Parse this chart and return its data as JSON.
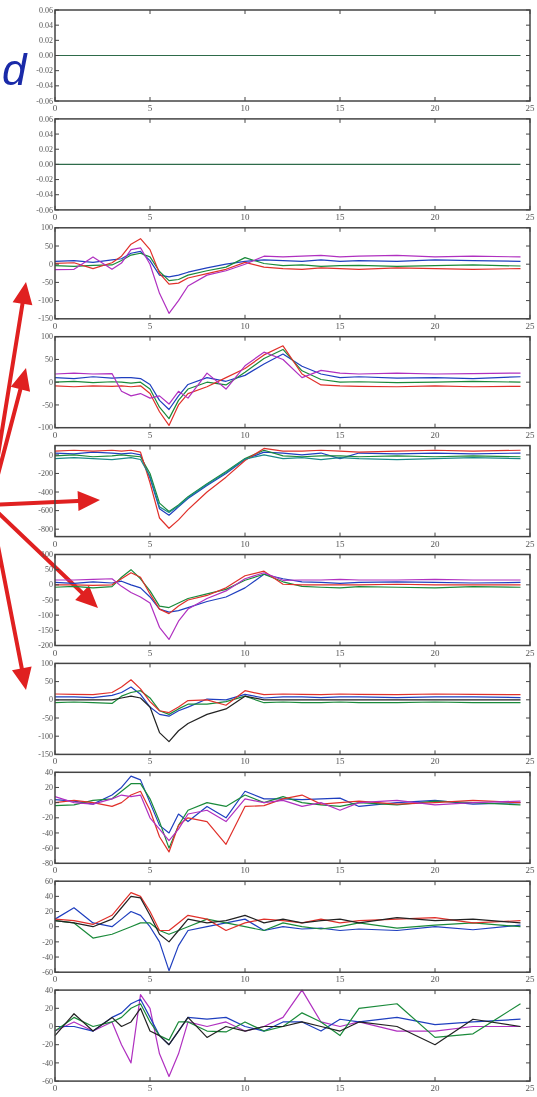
{
  "chart_data": [
    {
      "type": "line",
      "annotations": [
        "d"
      ],
      "xlim": [
        0,
        25
      ],
      "xticks": [
        0,
        5,
        10,
        15,
        20,
        25
      ],
      "ylim": [
        -0.06,
        0.06
      ],
      "yticks": [
        -0.06,
        -0.04,
        -0.02,
        {
          "value": 0,
          "label": "0.00"
        },
        0.02,
        0.04,
        0.06
      ],
      "x": [
        0,
        24.5
      ],
      "series": [
        {
          "color": "#2e6b4a",
          "values": [
            0,
            0
          ]
        }
      ]
    },
    {
      "type": "line",
      "xlim": [
        0,
        25
      ],
      "xticks": [
        0,
        5,
        10,
        15,
        20,
        25
      ],
      "ylim": [
        -0.06,
        0.06
      ],
      "yticks": [
        -0.06,
        -0.04,
        -0.02,
        {
          "value": 0,
          "label": "0.00"
        },
        0.02,
        0.04,
        0.06
      ],
      "x": [
        0,
        24.5
      ],
      "series": [
        {
          "color": "#2e6b4a",
          "values": [
            0,
            0
          ]
        }
      ]
    },
    {
      "type": "line",
      "xlim": [
        0,
        25
      ],
      "xticks": [
        0,
        5,
        10,
        15,
        20,
        25
      ],
      "ylim": [
        -150,
        100
      ],
      "yticks": [
        -150,
        -100,
        -50,
        0,
        50,
        100
      ],
      "x": [
        0,
        1,
        2,
        3,
        3.5,
        4,
        4.5,
        5,
        5.5,
        6,
        6.5,
        7,
        8,
        9,
        10,
        11,
        12,
        13,
        14,
        15,
        16,
        18,
        20,
        22,
        24.5
      ],
      "series": [
        {
          "color": "#1f3fbf",
          "values": [
            8,
            10,
            5,
            12,
            15,
            30,
            35,
            10,
            -30,
            -35,
            -30,
            -22,
            -10,
            0,
            8,
            12,
            10,
            8,
            12,
            8,
            10,
            8,
            12,
            10,
            8
          ]
        },
        {
          "color": "#1a8a3a",
          "values": [
            -4,
            -6,
            -3,
            -2,
            10,
            25,
            30,
            20,
            -20,
            -45,
            -42,
            -30,
            -18,
            -8,
            18,
            2,
            -4,
            -2,
            -6,
            -4,
            -3,
            -6,
            -4,
            -2,
            -5
          ]
        },
        {
          "color": "#e0302a",
          "values": [
            2,
            4,
            -12,
            4,
            22,
            55,
            70,
            40,
            -25,
            -55,
            -52,
            -38,
            -26,
            -14,
            5,
            -8,
            -12,
            -14,
            -10,
            -12,
            -14,
            -10,
            -12,
            -14,
            -12
          ]
        },
        {
          "color": "#b030c0",
          "values": [
            -15,
            -14,
            20,
            -14,
            3,
            40,
            45,
            0,
            -80,
            -135,
            -100,
            -60,
            -30,
            -18,
            0,
            22,
            20,
            22,
            24,
            20,
            22,
            24,
            20,
            22,
            20
          ]
        }
      ]
    },
    {
      "type": "line",
      "xlim": [
        0,
        25
      ],
      "xticks": [
        0,
        5,
        10,
        15,
        20,
        25
      ],
      "ylim": [
        -100,
        100
      ],
      "yticks": [
        -100,
        -50,
        0,
        50,
        100
      ],
      "x": [
        0,
        1,
        2,
        3,
        3.5,
        4,
        4.5,
        5,
        5.5,
        6,
        6.5,
        7,
        8,
        9,
        10,
        11,
        12,
        13,
        14,
        15,
        16,
        18,
        20,
        22,
        24.5
      ],
      "series": [
        {
          "color": "#1f3fbf",
          "values": [
            10,
            8,
            12,
            9,
            10,
            10,
            8,
            -5,
            -40,
            -60,
            -30,
            -5,
            10,
            2,
            15,
            40,
            62,
            35,
            18,
            10,
            12,
            9,
            10,
            8,
            12
          ]
        },
        {
          "color": "#1a8a3a",
          "values": [
            0,
            2,
            -1,
            1,
            0,
            -2,
            0,
            -15,
            -55,
            -80,
            -40,
            -15,
            0,
            -6,
            22,
            52,
            72,
            25,
            6,
            0,
            1,
            -1,
            0,
            2,
            0
          ]
        },
        {
          "color": "#e0302a",
          "values": [
            -8,
            -10,
            -8,
            -9,
            -8,
            -10,
            -8,
            -25,
            -65,
            -95,
            -50,
            -25,
            -10,
            10,
            30,
            60,
            80,
            18,
            -6,
            -8,
            -9,
            -10,
            -8,
            -10,
            -9
          ]
        },
        {
          "color": "#b030c0",
          "values": [
            18,
            20,
            18,
            19,
            -20,
            -30,
            -25,
            -35,
            -30,
            -48,
            -20,
            -35,
            20,
            -15,
            36,
            66,
            50,
            10,
            26,
            20,
            18,
            20,
            18,
            19,
            20
          ]
        }
      ]
    },
    {
      "type": "line",
      "xlim": [
        0,
        25
      ],
      "xticks": [
        0,
        5,
        10,
        15,
        20,
        25
      ],
      "ylim": [
        -880,
        100
      ],
      "yticks": [
        -800,
        -600,
        -400,
        -200,
        0
      ],
      "x": [
        0,
        1,
        2,
        3,
        3.5,
        4,
        4.5,
        5,
        5.5,
        6,
        6.5,
        7,
        8,
        9,
        10,
        11,
        12,
        13,
        14,
        15,
        16,
        18,
        20,
        22,
        24.5
      ],
      "series": [
        {
          "color": "#1f3fbf",
          "values": [
            20,
            10,
            30,
            20,
            10,
            20,
            0,
            -250,
            -580,
            -650,
            -560,
            -470,
            -330,
            -200,
            -50,
            30,
            20,
            0,
            20,
            -40,
            20,
            10,
            20,
            10,
            20
          ]
        },
        {
          "color": "#1a8a3a",
          "values": [
            -10,
            0,
            -20,
            -10,
            0,
            -10,
            -20,
            -200,
            -520,
            -610,
            -540,
            -450,
            -310,
            -180,
            -40,
            50,
            -10,
            -20,
            -10,
            -10,
            -20,
            -10,
            -20,
            -10,
            -20
          ]
        },
        {
          "color": "#e0302a",
          "values": [
            40,
            50,
            40,
            50,
            40,
            50,
            30,
            -300,
            -680,
            -790,
            -700,
            -590,
            -400,
            -240,
            -60,
            70,
            40,
            40,
            50,
            40,
            30,
            40,
            50,
            40,
            50
          ]
        },
        {
          "color": "#1a8a8a",
          "values": [
            -40,
            -30,
            -40,
            -50,
            -40,
            -30,
            -50,
            -230,
            -560,
            -620,
            -550,
            -460,
            -320,
            -190,
            -45,
            0,
            -40,
            -30,
            -50,
            -30,
            -40,
            -50,
            -40,
            -30,
            -40
          ]
        }
      ]
    },
    {
      "type": "line",
      "xlim": [
        0,
        25
      ],
      "xticks": [
        0,
        5,
        10,
        15,
        20,
        25
      ],
      "ylim": [
        -200,
        100
      ],
      "yticks": [
        -200,
        -150,
        -100,
        -50,
        0,
        50,
        100
      ],
      "x": [
        0,
        1,
        2,
        3,
        3.5,
        4,
        4.5,
        5,
        5.5,
        6,
        6.5,
        7,
        8,
        9,
        10,
        11,
        12,
        13,
        14,
        15,
        16,
        18,
        20,
        22,
        24.5
      ],
      "series": [
        {
          "color": "#1f3fbf",
          "values": [
            8,
            5,
            10,
            6,
            12,
            0,
            -10,
            -40,
            -80,
            -90,
            -85,
            -75,
            -55,
            -40,
            -10,
            35,
            20,
            10,
            8,
            5,
            8,
            10,
            8,
            6,
            8
          ]
        },
        {
          "color": "#1a8a3a",
          "values": [
            -8,
            -5,
            -10,
            -6,
            25,
            50,
            20,
            -20,
            -70,
            -75,
            -60,
            -45,
            -30,
            -15,
            15,
            35,
            10,
            -5,
            -8,
            -10,
            -6,
            -8,
            -10,
            -6,
            -8
          ]
        },
        {
          "color": "#e0302a",
          "values": [
            0,
            0,
            -2,
            0,
            20,
            40,
            25,
            -30,
            -80,
            -95,
            -70,
            -50,
            -35,
            -10,
            30,
            45,
            2,
            0,
            0,
            0,
            0,
            2,
            0,
            0,
            0
          ]
        },
        {
          "color": "#b030c0",
          "values": [
            16,
            16,
            18,
            20,
            -5,
            -25,
            -40,
            -60,
            -140,
            -180,
            -120,
            -80,
            -45,
            -20,
            20,
            40,
            15,
            16,
            16,
            18,
            16,
            16,
            18,
            16,
            16
          ]
        }
      ]
    },
    {
      "type": "line",
      "xlim": [
        0,
        25
      ],
      "xticks": [
        0,
        5,
        10,
        15,
        20,
        25
      ],
      "ylim": [
        -150,
        100
      ],
      "yticks": [
        -150,
        -100,
        -50,
        0,
        50,
        100
      ],
      "x": [
        0,
        1,
        2,
        3,
        3.5,
        4,
        4.5,
        5,
        5.5,
        6,
        6.5,
        7,
        8,
        9,
        10,
        11,
        12,
        13,
        14,
        15,
        16,
        18,
        20,
        22,
        24.5
      ],
      "series": [
        {
          "color": "#1f3fbf",
          "values": [
            8,
            8,
            6,
            12,
            20,
            35,
            15,
            -20,
            -40,
            -45,
            -30,
            -20,
            2,
            0,
            15,
            5,
            8,
            8,
            6,
            8,
            8,
            6,
            8,
            8,
            6
          ]
        },
        {
          "color": "#1a8a3a",
          "values": [
            -8,
            -6,
            -8,
            -10,
            10,
            20,
            25,
            5,
            -30,
            -40,
            -25,
            -12,
            -12,
            -5,
            10,
            -8,
            -6,
            -8,
            -8,
            -6,
            -8,
            -8,
            -6,
            -8,
            -8
          ]
        },
        {
          "color": "#e0302a",
          "values": [
            16,
            15,
            14,
            20,
            35,
            55,
            30,
            -5,
            -30,
            -35,
            -20,
            -2,
            0,
            -15,
            25,
            14,
            16,
            15,
            14,
            16,
            15,
            14,
            16,
            15,
            14
          ]
        },
        {
          "color": "#222222",
          "values": [
            0,
            0,
            0,
            0,
            5,
            10,
            5,
            -20,
            -90,
            -115,
            -85,
            -65,
            -40,
            -25,
            10,
            0,
            0,
            0,
            0,
            0,
            0,
            0,
            0,
            0,
            0
          ]
        }
      ]
    },
    {
      "type": "line",
      "xlim": [
        0,
        25
      ],
      "xticks": [
        0,
        5,
        10,
        15,
        20,
        25
      ],
      "ylim": [
        -80,
        40
      ],
      "yticks": [
        -80,
        -60,
        -40,
        -20,
        0,
        20,
        40
      ],
      "x": [
        0,
        1,
        2,
        3,
        3.5,
        4,
        4.5,
        5,
        5.5,
        6,
        6.5,
        7,
        8,
        9,
        10,
        11,
        12,
        13,
        14,
        15,
        16,
        18,
        20,
        22,
        24.5
      ],
      "series": [
        {
          "color": "#1f3fbf",
          "values": [
            4,
            2,
            -2,
            10,
            20,
            35,
            30,
            0,
            -30,
            -40,
            -15,
            -25,
            -5,
            -20,
            15,
            5,
            5,
            4,
            5,
            6,
            -5,
            0,
            3,
            -2,
            0
          ]
        },
        {
          "color": "#1a8a3a",
          "values": [
            -4,
            -3,
            3,
            5,
            15,
            25,
            25,
            5,
            -25,
            -60,
            -30,
            -10,
            0,
            -5,
            10,
            0,
            8,
            0,
            -3,
            -5,
            0,
            -3,
            2,
            0,
            -3
          ]
        },
        {
          "color": "#e0302a",
          "values": [
            0,
            3,
            0,
            -5,
            0,
            10,
            15,
            -10,
            -45,
            -65,
            -30,
            -20,
            -25,
            -55,
            -5,
            -4,
            5,
            10,
            -2,
            0,
            2,
            -2,
            0,
            3,
            0
          ]
        },
        {
          "color": "#b030c0",
          "values": [
            8,
            0,
            -2,
            5,
            10,
            8,
            10,
            -20,
            -35,
            -50,
            -35,
            -15,
            -10,
            -25,
            5,
            0,
            3,
            -5,
            0,
            -10,
            0,
            3,
            -3,
            0,
            2
          ]
        }
      ]
    },
    {
      "type": "line",
      "xlim": [
        0,
        25
      ],
      "xticks": [
        0,
        5,
        10,
        15,
        20,
        25
      ],
      "ylim": [
        -60,
        60
      ],
      "yticks": [
        -60,
        -40,
        -20,
        0,
        20,
        40,
        60
      ],
      "x": [
        0,
        1,
        2,
        3,
        3.5,
        4,
        4.5,
        5,
        5.5,
        6,
        6.5,
        7,
        8,
        9,
        10,
        11,
        12,
        13,
        14,
        15,
        16,
        18,
        20,
        22,
        24.5
      ],
      "series": [
        {
          "color": "#1f3fbf",
          "values": [
            10,
            25,
            5,
            0,
            10,
            20,
            15,
            0,
            -20,
            -58,
            -25,
            -5,
            0,
            5,
            10,
            -5,
            0,
            -3,
            -2,
            -5,
            -3,
            -5,
            0,
            -4,
            2
          ]
        },
        {
          "color": "#1a8a3a",
          "values": [
            8,
            5,
            -15,
            -10,
            -5,
            0,
            5,
            5,
            -5,
            -10,
            -5,
            0,
            10,
            5,
            0,
            -5,
            5,
            0,
            -3,
            0,
            5,
            -2,
            2,
            5,
            0
          ]
        },
        {
          "color": "#e0302a",
          "values": [
            10,
            8,
            3,
            15,
            30,
            45,
            40,
            20,
            -5,
            -5,
            5,
            15,
            10,
            -5,
            5,
            10,
            8,
            5,
            10,
            5,
            8,
            10,
            12,
            5,
            8
          ]
        },
        {
          "color": "#222222",
          "values": [
            8,
            5,
            0,
            10,
            25,
            40,
            38,
            15,
            -10,
            -20,
            -5,
            10,
            5,
            8,
            15,
            5,
            10,
            5,
            8,
            10,
            5,
            12,
            8,
            10,
            5
          ]
        }
      ]
    },
    {
      "type": "line",
      "xlim": [
        0,
        25
      ],
      "xticks": [
        0,
        5,
        10,
        15,
        20,
        25
      ],
      "ylim": [
        -60,
        40
      ],
      "yticks": [
        -60,
        -40,
        -20,
        0,
        20,
        40
      ],
      "x": [
        0,
        1,
        2,
        3,
        3.5,
        4,
        4.5,
        5,
        5.5,
        6,
        6.5,
        7,
        8,
        9,
        10,
        11,
        12,
        13,
        14,
        15,
        16,
        18,
        20,
        22,
        24.5
      ],
      "series": [
        {
          "color": "#b030c0",
          "values": [
            -5,
            5,
            -5,
            5,
            -20,
            -40,
            35,
            20,
            -30,
            -55,
            -30,
            5,
            0,
            5,
            -5,
            0,
            10,
            40,
            5,
            0,
            5,
            -5,
            -5,
            0,
            0
          ]
        },
        {
          "color": "#1f3fbf",
          "values": [
            0,
            0,
            -5,
            10,
            15,
            25,
            30,
            10,
            -10,
            -20,
            -5,
            10,
            8,
            10,
            0,
            -5,
            5,
            5,
            -5,
            8,
            5,
            10,
            2,
            5,
            8
          ]
        },
        {
          "color": "#1a8a3a",
          "values": [
            -5,
            10,
            0,
            5,
            10,
            20,
            25,
            5,
            -10,
            -15,
            5,
            5,
            -5,
            -6,
            5,
            -5,
            0,
            15,
            5,
            -10,
            20,
            25,
            -12,
            -8,
            25
          ]
        },
        {
          "color": "#222222",
          "values": [
            -10,
            14,
            -5,
            10,
            0,
            5,
            20,
            -5,
            -10,
            -20,
            -5,
            10,
            -12,
            0,
            -5,
            0,
            0,
            5,
            0,
            -5,
            5,
            0,
            -20,
            8,
            0
          ]
        }
      ]
    }
  ]
}
